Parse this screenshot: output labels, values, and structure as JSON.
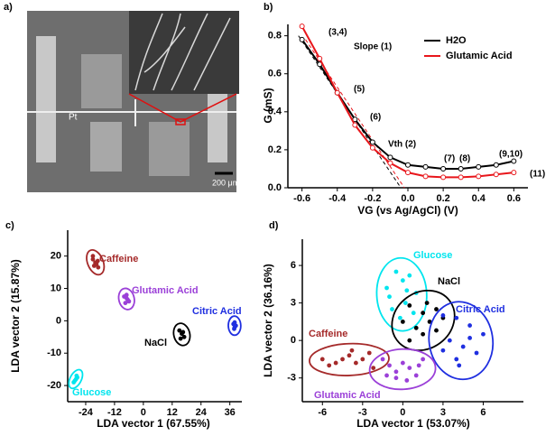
{
  "image_panel": {
    "panel_label": "a)",
    "label_pt": "Pt",
    "scale_bar": "200 μm"
  },
  "chart_data": [
    {
      "type": "line",
      "panel_label": "b)",
      "xlabel": "VG (vs Ag/AgCl) (V)",
      "ylabel": "G (mS)",
      "x": [
        -0.6,
        -0.5,
        -0.4,
        -0.3,
        -0.2,
        -0.1,
        0,
        0.1,
        0.2,
        0.3,
        0.4,
        0.5,
        0.6
      ],
      "series": [
        {
          "name": "H2O",
          "color": "#000000",
          "values": [
            0.78,
            0.65,
            0.5,
            0.36,
            0.24,
            0.16,
            0.12,
            0.11,
            0.1,
            0.1,
            0.11,
            0.12,
            0.14
          ]
        },
        {
          "name": "Glutamic Acid",
          "color": "#e8161b",
          "values": [
            0.85,
            0.68,
            0.5,
            0.33,
            0.21,
            0.13,
            0.08,
            0.06,
            0.055,
            0.055,
            0.06,
            0.07,
            0.08
          ]
        }
      ],
      "xlim": [
        -0.68,
        0.68
      ],
      "xticks": [
        -0.6,
        -0.4,
        -0.2,
        {
          "value": 0,
          "label": "0.0"
        },
        0.2,
        0.4,
        0.6
      ],
      "ylim": [
        0,
        0.86
      ],
      "yticks": [
        {
          "value": 0,
          "label": "0.0"
        },
        0.2,
        0.4,
        0.6,
        0.8
      ],
      "legend": "upper right",
      "annotations": [
        "(3,4)",
        "Slope (1)",
        "(5)",
        "(6)",
        "Vth (2)",
        "(7)",
        "(8)",
        "(9,10)",
        "(11)"
      ]
    },
    {
      "type": "scatter",
      "panel_label": "c)",
      "xlabel": "LDA vector 1 (67.55%)",
      "ylabel": "LDA vector 2 (15.87%)",
      "xlim": [
        -31.5,
        41
      ],
      "xticks": [
        -24,
        -12,
        0,
        12,
        24,
        36
      ],
      "ylim": [
        -25,
        28
      ],
      "yticks": [
        -20,
        -10,
        0,
        10,
        20
      ],
      "series": [
        {
          "name": "Caffeine",
          "color": "#a52a2a",
          "x": [
            -21,
            -20,
            -19,
            -20.5,
            -19.5,
            -21,
            -18.8
          ],
          "values": [
            19,
            18,
            18.5,
            17,
            17.5,
            20,
            16.5
          ]
        },
        {
          "name": "Glutamic Acid",
          "color": "#9b40d8",
          "x": [
            -8,
            -7,
            -6,
            -7.5,
            -6.5,
            -7
          ],
          "values": [
            7.5,
            7,
            6,
            5.5,
            6.5,
            8
          ]
        },
        {
          "name": "Citric Acid",
          "color": "#1f2fe0",
          "x": [
            37.5,
            38,
            38.5,
            38,
            37.8
          ],
          "values": [
            -1,
            -2,
            -1.5,
            -0.5,
            -2.5
          ]
        },
        {
          "name": "NaCl",
          "color": "#000000",
          "x": [
            15,
            16,
            17,
            16.5,
            15.5
          ],
          "values": [
            -3,
            -4,
            -5,
            -3.5,
            -5.5
          ]
        },
        {
          "name": "Glucose",
          "color": "#00e5ee",
          "x": [
            -29,
            -28,
            -27.5,
            -28.5,
            -27.8
          ],
          "values": [
            -19,
            -18,
            -17.5,
            -18.5,
            -17
          ]
        }
      ]
    },
    {
      "type": "scatter",
      "panel_label": "d)",
      "xlabel": "LDA vector 1 (53.07%)",
      "ylabel": "LDA vector 2 (36.16%)",
      "xlim": [
        -7.5,
        9
      ],
      "xticks": [
        -6,
        -3,
        0,
        3,
        6
      ],
      "ylim": [
        -4.9,
        8.1
      ],
      "yticks": [
        -3,
        0,
        3,
        6
      ],
      "series": [
        {
          "name": "Glucose",
          "color": "#00e5ee",
          "x": [
            -0.5,
            0,
            0.5,
            -1,
            -0.8,
            0.3,
            1,
            -0.2,
            0.8,
            -1.2,
            0.2
          ],
          "values": [
            5.5,
            4.8,
            5.2,
            3.5,
            2.5,
            4,
            3.8,
            1.8,
            2.2,
            4.2,
            3
          ]
        },
        {
          "name": "NaCl",
          "color": "#000000",
          "x": [
            0.5,
            1.5,
            2.5,
            0,
            1,
            2,
            3,
            1.5,
            0.5,
            2.5,
            1.8
          ],
          "values": [
            2.8,
            2.2,
            2.5,
            1.5,
            1,
            1.5,
            1.8,
            0.5,
            0,
            0.8,
            3
          ]
        },
        {
          "name": "Citric Acid",
          "color": "#1f2fe0",
          "x": [
            3,
            4,
            5,
            6,
            3.5,
            4.5,
            5.5,
            4,
            3,
            5,
            4.2
          ],
          "values": [
            2,
            1.8,
            1.2,
            0.5,
            0,
            -0.5,
            -1,
            -1.5,
            -0.8,
            0.2,
            -2
          ]
        },
        {
          "name": "Caffeine",
          "color": "#a52a2a",
          "x": [
            -6,
            -5,
            -4.5,
            -4,
            -3.5,
            -3,
            -2.5,
            -5.5,
            -3.8,
            -2.2
          ],
          "values": [
            -1.5,
            -1.8,
            -1.5,
            -1.2,
            -1.8,
            -1.5,
            -1,
            -2,
            -0.8,
            -2.2
          ]
        },
        {
          "name": "Glutamic Acid",
          "color": "#9b40d8",
          "x": [
            -1.5,
            -1,
            -0.5,
            0,
            0.5,
            1,
            1.5,
            -0.5,
            0.3,
            1.2,
            -1.2
          ],
          "values": [
            -1.5,
            -2,
            -2.5,
            -1.8,
            -2.2,
            -2.8,
            -1.5,
            -3,
            -3.2,
            -2,
            -2.8
          ]
        }
      ]
    }
  ]
}
